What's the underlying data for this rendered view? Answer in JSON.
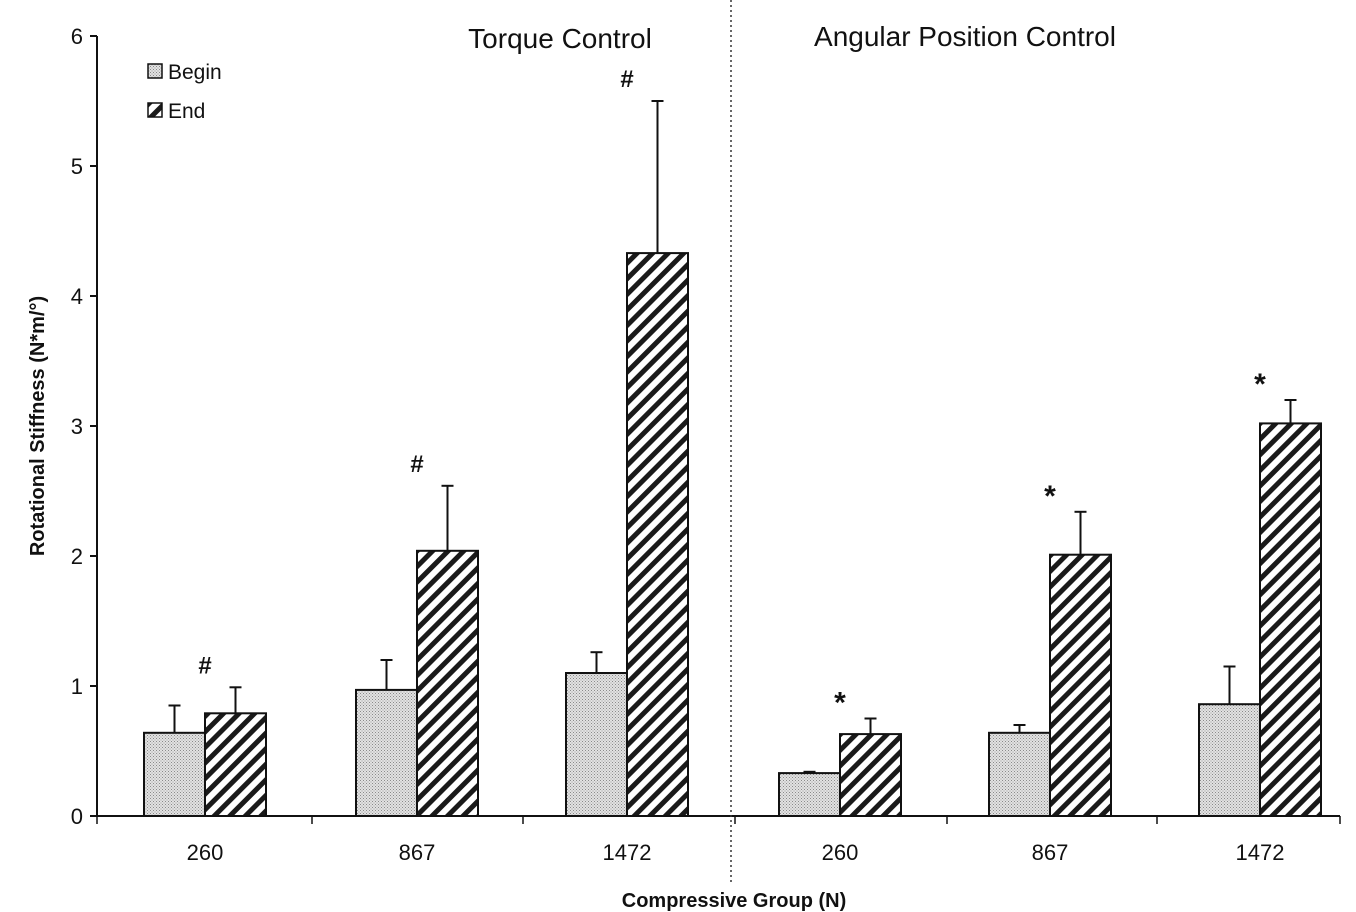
{
  "chart_data": {
    "type": "bar",
    "ylabel": "Rotational Stiffness (N*m/°)",
    "xlabel": "Compressive Group (N)",
    "ylim": [
      0,
      6
    ],
    "yticks": [
      "0",
      "1",
      "2",
      "3",
      "4",
      "5",
      "6"
    ],
    "grid": false,
    "legend_position": "top-left",
    "series": [
      {
        "name": "Begin",
        "pattern": "dotted-gray",
        "color": "#c8c8c8"
      },
      {
        "name": "End",
        "pattern": "diagonal-hatch",
        "color": "#1a1a1a"
      }
    ],
    "panels": [
      {
        "title": "Torque Control",
        "groups": [
          {
            "category": "260",
            "begin": 0.64,
            "begin_err": 0.21,
            "end": 0.79,
            "end_err": 0.2,
            "annotation": "#"
          },
          {
            "category": "867",
            "begin": 0.97,
            "begin_err": 0.23,
            "end": 2.04,
            "end_err": 0.5,
            "annotation": "#"
          },
          {
            "category": "1472",
            "begin": 1.1,
            "begin_err": 0.16,
            "end": 4.33,
            "end_err": 1.17,
            "annotation": "#"
          }
        ]
      },
      {
        "title": "Angular Position Control",
        "groups": [
          {
            "category": "260",
            "begin": 0.33,
            "begin_err": 0.01,
            "end": 0.63,
            "end_err": 0.12,
            "annotation": "*"
          },
          {
            "category": "867",
            "begin": 0.64,
            "begin_err": 0.06,
            "end": 2.01,
            "end_err": 0.33,
            "annotation": "*"
          },
          {
            "category": "1472",
            "begin": 0.86,
            "begin_err": 0.29,
            "end": 3.02,
            "end_err": 0.18,
            "annotation": "*"
          }
        ]
      }
    ]
  }
}
